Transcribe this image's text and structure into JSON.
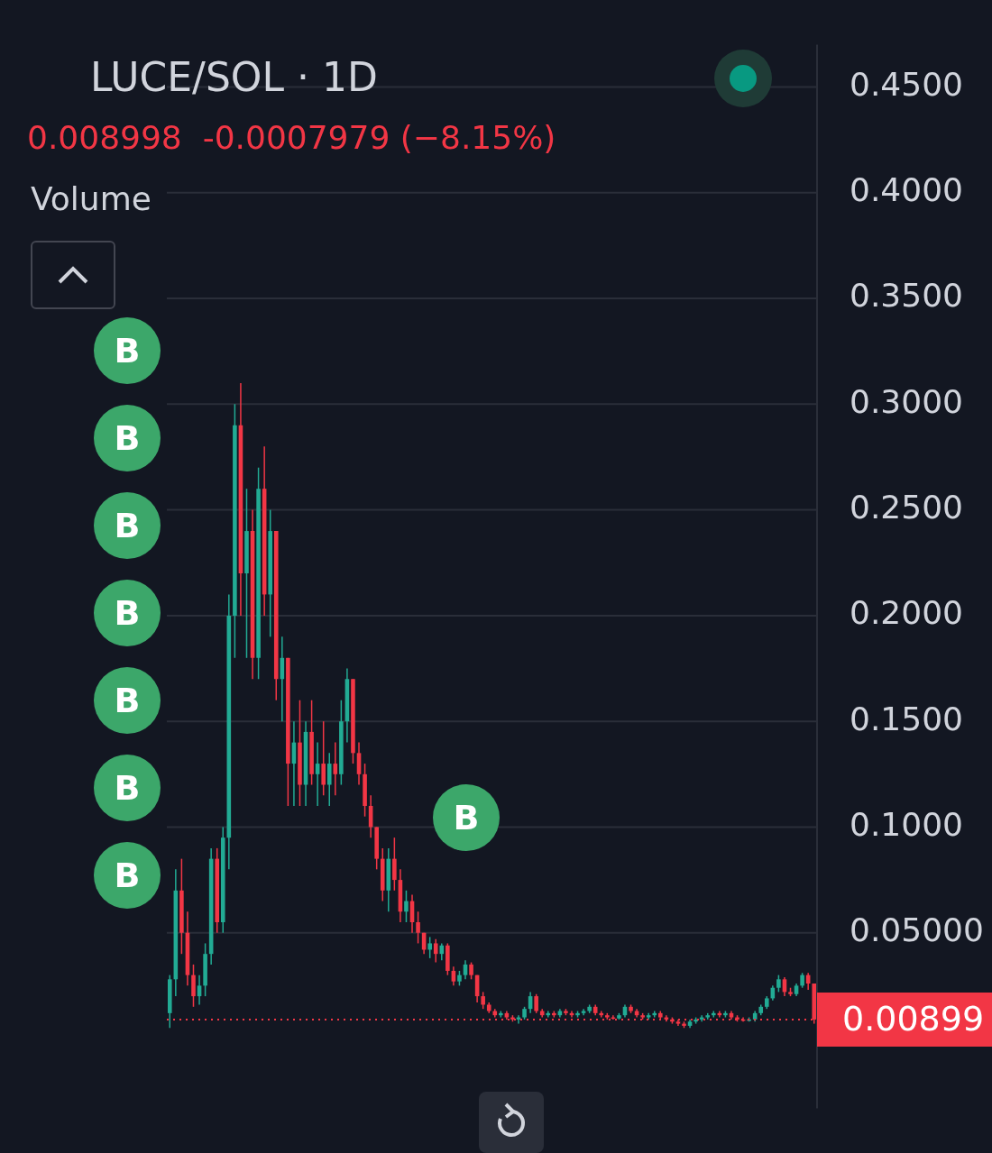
{
  "chart_data": {
    "type": "candlestick",
    "title": "LUCE/SOL · 1D",
    "subtitle": "0.008998  -0.0007979 (−8.15%)",
    "annotations": [
      "Volume",
      "B",
      "B",
      "B",
      "B",
      "B",
      "B",
      "B",
      "B"
    ],
    "categories": [
      null,
      null,
      null,
      null,
      null,
      null,
      null,
      null,
      null,
      null,
      null,
      null,
      null,
      null,
      null,
      null,
      null,
      null,
      null,
      null,
      null,
      null,
      null,
      null,
      null,
      null,
      null,
      null,
      null,
      null,
      null,
      null,
      null,
      null,
      null,
      null,
      null,
      null,
      null,
      null,
      null,
      null,
      null,
      null,
      null,
      null,
      null,
      null,
      null,
      null,
      null,
      null,
      null,
      null,
      null,
      null,
      null,
      null,
      null,
      null,
      null,
      null,
      null,
      null,
      null,
      null,
      null,
      null,
      null,
      null,
      null,
      null,
      null,
      null,
      null,
      null,
      null,
      null,
      null,
      null,
      null,
      null,
      null,
      null,
      null,
      null,
      null,
      null,
      null,
      null,
      null,
      null,
      null,
      null,
      null,
      null,
      null,
      null,
      null,
      null,
      null,
      null,
      null,
      null,
      null,
      null,
      null,
      null,
      null,
      null
    ],
    "ohlc": [
      [
        0.012,
        0.03,
        0.005,
        0.028
      ],
      [
        0.028,
        0.08,
        0.02,
        0.07
      ],
      [
        0.07,
        0.085,
        0.04,
        0.05
      ],
      [
        0.05,
        0.06,
        0.025,
        0.03
      ],
      [
        0.03,
        0.035,
        0.015,
        0.02
      ],
      [
        0.02,
        0.03,
        0.016,
        0.025
      ],
      [
        0.025,
        0.045,
        0.02,
        0.04
      ],
      [
        0.04,
        0.09,
        0.035,
        0.085
      ],
      [
        0.085,
        0.09,
        0.05,
        0.055
      ],
      [
        0.055,
        0.1,
        0.05,
        0.095
      ],
      [
        0.095,
        0.21,
        0.08,
        0.2
      ],
      [
        0.2,
        0.3,
        0.18,
        0.29
      ],
      [
        0.29,
        0.31,
        0.2,
        0.22
      ],
      [
        0.22,
        0.26,
        0.18,
        0.24
      ],
      [
        0.24,
        0.25,
        0.17,
        0.18
      ],
      [
        0.18,
        0.27,
        0.17,
        0.26
      ],
      [
        0.26,
        0.28,
        0.2,
        0.21
      ],
      [
        0.21,
        0.25,
        0.19,
        0.24
      ],
      [
        0.24,
        0.24,
        0.16,
        0.17
      ],
      [
        0.17,
        0.19,
        0.15,
        0.18
      ],
      [
        0.18,
        0.18,
        0.11,
        0.13
      ],
      [
        0.13,
        0.15,
        0.11,
        0.14
      ],
      [
        0.14,
        0.16,
        0.11,
        0.12
      ],
      [
        0.12,
        0.15,
        0.11,
        0.145
      ],
      [
        0.145,
        0.16,
        0.12,
        0.125
      ],
      [
        0.125,
        0.14,
        0.11,
        0.13
      ],
      [
        0.13,
        0.15,
        0.115,
        0.12
      ],
      [
        0.12,
        0.135,
        0.11,
        0.13
      ],
      [
        0.13,
        0.14,
        0.115,
        0.125
      ],
      [
        0.125,
        0.16,
        0.12,
        0.15
      ],
      [
        0.15,
        0.175,
        0.14,
        0.17
      ],
      [
        0.17,
        0.17,
        0.13,
        0.135
      ],
      [
        0.135,
        0.14,
        0.12,
        0.125
      ],
      [
        0.125,
        0.13,
        0.105,
        0.11
      ],
      [
        0.11,
        0.115,
        0.095,
        0.1
      ],
      [
        0.1,
        0.1,
        0.08,
        0.085
      ],
      [
        0.085,
        0.09,
        0.065,
        0.07
      ],
      [
        0.07,
        0.09,
        0.06,
        0.085
      ],
      [
        0.085,
        0.095,
        0.07,
        0.075
      ],
      [
        0.075,
        0.08,
        0.055,
        0.06
      ],
      [
        0.06,
        0.07,
        0.055,
        0.065
      ],
      [
        0.065,
        0.068,
        0.05,
        0.055
      ],
      [
        0.055,
        0.06,
        0.045,
        0.05
      ],
      [
        0.05,
        0.05,
        0.04,
        0.042
      ],
      [
        0.042,
        0.048,
        0.038,
        0.045
      ],
      [
        0.045,
        0.047,
        0.036,
        0.04
      ],
      [
        0.04,
        0.045,
        0.037,
        0.044
      ],
      [
        0.044,
        0.045,
        0.03,
        0.032
      ],
      [
        0.032,
        0.034,
        0.025,
        0.027
      ],
      [
        0.027,
        0.032,
        0.025,
        0.03
      ],
      [
        0.03,
        0.037,
        0.028,
        0.035
      ],
      [
        0.035,
        0.036,
        0.028,
        0.03
      ],
      [
        0.03,
        0.03,
        0.017,
        0.02
      ],
      [
        0.02,
        0.022,
        0.014,
        0.016
      ],
      [
        0.016,
        0.017,
        0.012,
        0.013
      ],
      [
        0.013,
        0.014,
        0.01,
        0.011
      ],
      [
        0.011,
        0.013,
        0.01,
        0.012
      ],
      [
        0.012,
        0.013,
        0.009,
        0.01
      ],
      [
        0.01,
        0.011,
        0.008,
        0.009
      ],
      [
        0.009,
        0.011,
        0.007,
        0.01
      ],
      [
        0.01,
        0.015,
        0.009,
        0.014
      ],
      [
        0.014,
        0.022,
        0.012,
        0.02
      ],
      [
        0.02,
        0.021,
        0.012,
        0.013
      ],
      [
        0.013,
        0.014,
        0.01,
        0.011
      ],
      [
        0.011,
        0.013,
        0.01,
        0.012
      ],
      [
        0.012,
        0.013,
        0.01,
        0.011
      ],
      [
        0.011,
        0.014,
        0.01,
        0.013
      ],
      [
        0.013,
        0.014,
        0.011,
        0.012
      ],
      [
        0.012,
        0.013,
        0.01,
        0.011
      ],
      [
        0.011,
        0.013,
        0.01,
        0.012
      ],
      [
        0.012,
        0.014,
        0.011,
        0.013
      ],
      [
        0.013,
        0.016,
        0.012,
        0.015
      ],
      [
        0.015,
        0.016,
        0.011,
        0.012
      ],
      [
        0.012,
        0.013,
        0.01,
        0.011
      ],
      [
        0.011,
        0.012,
        0.009,
        0.01
      ],
      [
        0.01,
        0.011,
        0.009,
        0.0095
      ],
      [
        0.0095,
        0.012,
        0.009,
        0.011
      ],
      [
        0.011,
        0.016,
        0.01,
        0.015
      ],
      [
        0.015,
        0.016,
        0.012,
        0.013
      ],
      [
        0.013,
        0.014,
        0.01,
        0.011
      ],
      [
        0.011,
        0.012,
        0.009,
        0.01
      ],
      [
        0.01,
        0.012,
        0.009,
        0.011
      ],
      [
        0.011,
        0.013,
        0.01,
        0.012
      ],
      [
        0.012,
        0.013,
        0.009,
        0.01
      ],
      [
        0.01,
        0.011,
        0.008,
        0.009
      ],
      [
        0.009,
        0.01,
        0.007,
        0.008
      ],
      [
        0.008,
        0.009,
        0.006,
        0.007
      ],
      [
        0.007,
        0.008,
        0.005,
        0.006
      ],
      [
        0.006,
        0.009,
        0.005,
        0.008
      ],
      [
        0.008,
        0.01,
        0.007,
        0.009
      ],
      [
        0.009,
        0.011,
        0.008,
        0.01
      ],
      [
        0.01,
        0.012,
        0.009,
        0.011
      ],
      [
        0.011,
        0.013,
        0.01,
        0.012
      ],
      [
        0.012,
        0.013,
        0.01,
        0.011
      ],
      [
        0.011,
        0.013,
        0.01,
        0.012
      ],
      [
        0.012,
        0.013,
        0.009,
        0.01
      ],
      [
        0.01,
        0.011,
        0.008,
        0.009
      ],
      [
        0.009,
        0.01,
        0.008,
        0.0085
      ],
      [
        0.0085,
        0.01,
        0.008,
        0.009
      ],
      [
        0.009,
        0.013,
        0.008,
        0.012
      ],
      [
        0.012,
        0.016,
        0.011,
        0.015
      ],
      [
        0.015,
        0.02,
        0.014,
        0.019
      ],
      [
        0.019,
        0.025,
        0.018,
        0.024
      ],
      [
        0.024,
        0.03,
        0.022,
        0.028
      ],
      [
        0.028,
        0.029,
        0.02,
        0.022
      ],
      [
        0.022,
        0.024,
        0.02,
        0.021
      ],
      [
        0.021,
        0.026,
        0.02,
        0.025
      ],
      [
        0.025,
        0.031,
        0.024,
        0.03
      ],
      [
        0.03,
        0.031,
        0.023,
        0.026
      ],
      [
        0.026,
        0.026,
        0.007,
        0.008998
      ]
    ],
    "ylim": [
      -0.033,
      0.47
    ],
    "yticks": [
      {
        "value": 0.05,
        "label": "0.05000"
      },
      {
        "value": 0.1,
        "label": "0.1000"
      },
      {
        "value": 0.15,
        "label": "0.1500"
      },
      {
        "value": 0.2,
        "label": "0.2000"
      },
      {
        "value": 0.25,
        "label": "0.2500"
      },
      {
        "value": 0.3,
        "label": "0.3000"
      },
      {
        "value": 0.35,
        "label": "0.3500"
      },
      {
        "value": 0.4,
        "label": "0.4000"
      },
      {
        "value": 0.45,
        "label": "0.4500"
      }
    ],
    "ref_lines": [
      {
        "axis": "y",
        "value": 0.00899,
        "label": "0.00899",
        "color": "#f23645",
        "line_style": "dotted"
      }
    ],
    "grid": "y",
    "legend": false,
    "tick_labels": "y"
  }
}
